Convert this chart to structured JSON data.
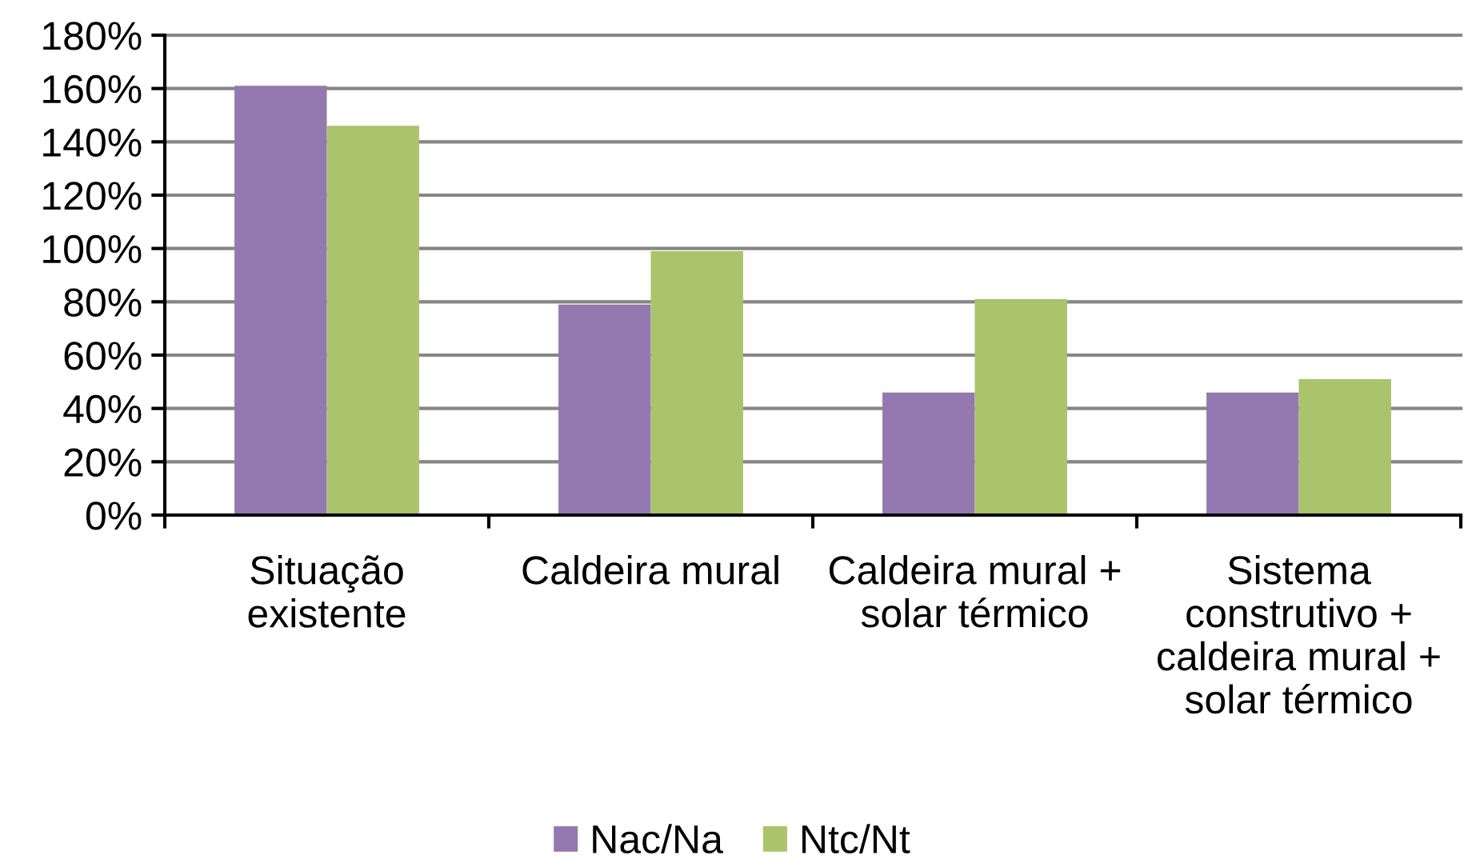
{
  "chart_data": {
    "type": "bar",
    "categories": [
      "Situação\nexistente",
      "Caldeira mural",
      "Caldeira mural +\nsolar térmico",
      "Sistema\nconstrutivo +\ncaldeira mural +\nsolar térmico"
    ],
    "series": [
      {
        "name": "Nac/Na",
        "color": "#9379b0",
        "values": [
          161,
          79,
          46,
          46
        ]
      },
      {
        "name": "Ntc/Nt",
        "color": "#a9c46b",
        "values": [
          146,
          99,
          81,
          51
        ]
      }
    ],
    "ylim": [
      0,
      180
    ],
    "yticks": [
      {
        "value": 0,
        "label": "0%"
      },
      {
        "value": 20,
        "label": "20%"
      },
      {
        "value": 40,
        "label": "40%"
      },
      {
        "value": 60,
        "label": "60%"
      },
      {
        "value": 80,
        "label": "80%"
      },
      {
        "value": 100,
        "label": "100%"
      },
      {
        "value": 120,
        "label": "120%"
      },
      {
        "value": 140,
        "label": "140%"
      },
      {
        "value": 160,
        "label": "160%"
      },
      {
        "value": 180,
        "label": "180%"
      }
    ],
    "grid": "y",
    "legend": "bottom"
  }
}
